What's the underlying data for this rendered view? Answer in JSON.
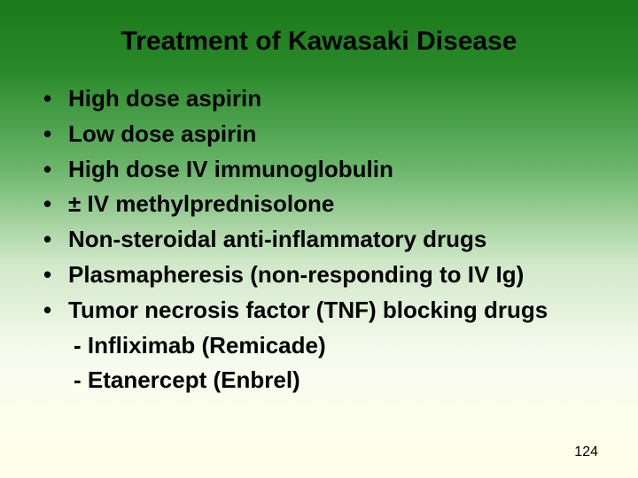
{
  "title": "Treatment of Kawasaki Disease",
  "bullets": [
    "High dose aspirin",
    "Low dose aspirin",
    "High dose IV immunoglobulin",
    "± IV methylprednisolone",
    "Non-steroidal anti-inflammatory drugs",
    "Plasmapheresis (non-responding to IV Ig)",
    "Tumor necrosis factor (TNF) blocking drugs"
  ],
  "subitems": [
    "- Infliximab (Remicade)",
    "- Etanercept (Enbrel)"
  ],
  "pageNumber": "124",
  "styling": {
    "title_fontsize": 30,
    "bullet_fontsize": 26,
    "pagenum_fontsize": 16,
    "text_color": "#000000",
    "gradient_stops": [
      "#1a7a1a",
      "#2a8a2a",
      "#6ab56a",
      "#d0e8c8",
      "#f8fcf0",
      "#ffffe8"
    ],
    "font_family": "Arial",
    "font_weight": "bold"
  }
}
